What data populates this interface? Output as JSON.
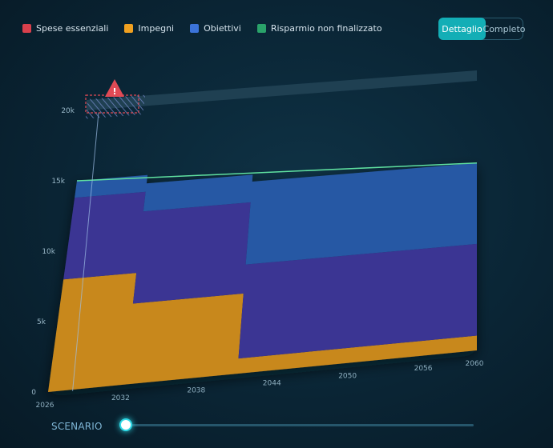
{
  "legend": [
    {
      "label": "Spese essenziali",
      "color": "#d9404c"
    },
    {
      "label": "Impegni",
      "color": "#f0a020"
    },
    {
      "label": "Obiettivi",
      "color": "#3b73d9"
    },
    {
      "label": "Risparmio non finalizzato",
      "color": "#2aa36a"
    }
  ],
  "view_toggle": {
    "active": "Dettaglio",
    "inactive": "Completo"
  },
  "scenario": {
    "label": "SCENARIO",
    "position": 0
  },
  "alert": {
    "icon": "warning-triangle-icon",
    "symbol": "!"
  },
  "chart_data": {
    "type": "area",
    "stacked": true,
    "x_ticks": [
      "2026",
      "2032",
      "2038",
      "2044",
      "2050",
      "2056",
      "2060"
    ],
    "y_ticks": [
      "0",
      "5k",
      "10k",
      "15k",
      "20k"
    ],
    "ylim": [
      0,
      20000
    ],
    "x_range": [
      2026,
      2060
    ],
    "series": [
      {
        "name": "Spese essenziali",
        "color": "#d9404c",
        "points": [
          [
            2026,
            0
          ],
          [
            2060,
            0
          ]
        ]
      },
      {
        "name": "Impegni",
        "color": "#f0a020",
        "points": [
          [
            2026,
            8000
          ],
          [
            2032,
            8000
          ],
          [
            2032,
            5800
          ],
          [
            2041,
            5800
          ],
          [
            2041,
            1100
          ],
          [
            2060,
            1100
          ]
        ]
      },
      {
        "name": "Obiettivi",
        "color": "#3b73d9",
        "points": [
          [
            2026,
            5800
          ],
          [
            2032,
            5800
          ],
          [
            2032,
            6600
          ],
          [
            2041,
            6600
          ],
          [
            2041,
            6800
          ],
          [
            2060,
            6800
          ]
        ]
      },
      {
        "name": "Risparmio non finalizzato",
        "color": "#2aa36a",
        "points": [
          [
            2026,
            1200
          ],
          [
            2032,
            1200
          ],
          [
            2032,
            2000
          ],
          [
            2041,
            2000
          ],
          [
            2041,
            6000
          ],
          [
            2060,
            6000
          ]
        ]
      }
    ],
    "highlight_range": [
      2026,
      2031
    ],
    "grid": false
  }
}
